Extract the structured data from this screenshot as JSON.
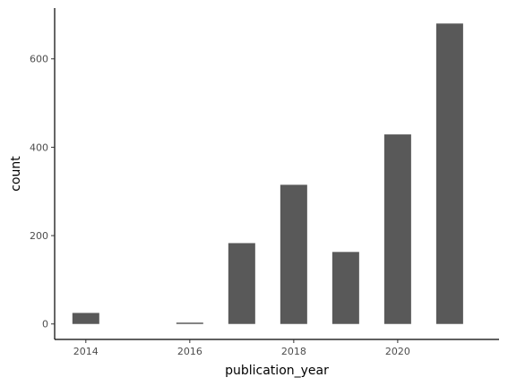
{
  "chart_data": {
    "type": "bar",
    "title": "",
    "xlabel": "publication_year",
    "ylabel": "count",
    "categories": [
      2014,
      2016,
      2017,
      2018,
      2019,
      2020,
      2021
    ],
    "values": [
      25,
      3,
      183,
      315,
      163,
      429,
      680
    ],
    "x_ticks": [
      2014,
      2016,
      2018,
      2020
    ],
    "y_ticks": [
      0,
      200,
      400,
      600
    ],
    "xlim": [
      2013.4,
      2021.95
    ],
    "ylim": [
      -35,
      715
    ],
    "grid": false,
    "bar_color": "#595959",
    "axis_color": "#000000"
  }
}
